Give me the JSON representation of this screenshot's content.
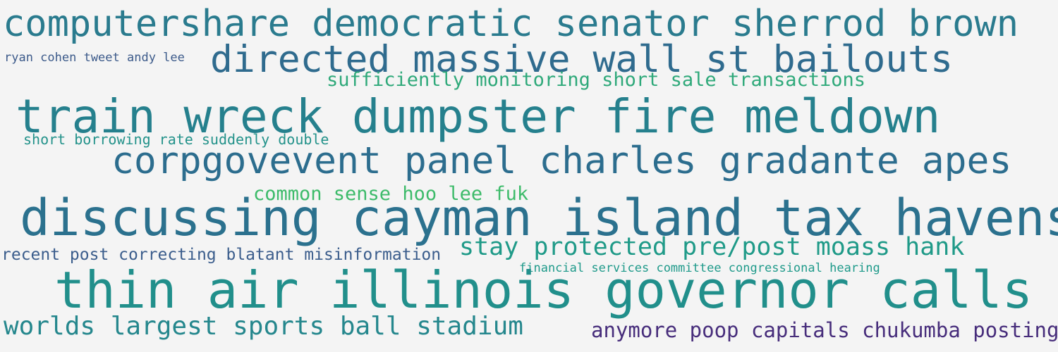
{
  "word_cloud": {
    "phrases": [
      {
        "id": "p1",
        "text": "computershare democratic senator sherrod brown",
        "color": "#2a7b8e"
      },
      {
        "id": "p2",
        "text": "directed massive wall st bailouts",
        "color": "#2f6b8e"
      },
      {
        "id": "p3",
        "text": "ryan cohen tweet andy lee",
        "color": "#3c5a8a"
      },
      {
        "id": "p4",
        "text": "sufficiently monitoring short sale transactions",
        "color": "#2fa97a"
      },
      {
        "id": "p5",
        "text": "train wreck dumpster fire meldown",
        "color": "#25808d"
      },
      {
        "id": "p6",
        "text": "short borrowing rate suddenly double",
        "color": "#23928a"
      },
      {
        "id": "p7",
        "text": "corpgovevent panel charles gradante apes",
        "color": "#2c6d8e"
      },
      {
        "id": "p8",
        "text": "common sense hoo lee fuk",
        "color": "#3dbb6a"
      },
      {
        "id": "p9",
        "text": "discussing cayman island tax havens",
        "color": "#2b718e"
      },
      {
        "id": "p10",
        "text": "recent post correcting blatant misinformation",
        "color": "#3b5d8c"
      },
      {
        "id": "p11",
        "text": "stay protected pre/post moass hank",
        "color": "#1f9a88"
      },
      {
        "id": "p12",
        "text": "financial services committee congressional hearing",
        "color": "#1f9a8a"
      },
      {
        "id": "p13",
        "text": "thin air illinois governor calls",
        "color": "#218f8b"
      },
      {
        "id": "p14",
        "text": "worlds largest sports ball stadium",
        "color": "#25878d"
      },
      {
        "id": "p15",
        "text": "anymore poop capitals chukumba posting",
        "color": "#472d7b"
      }
    ]
  }
}
